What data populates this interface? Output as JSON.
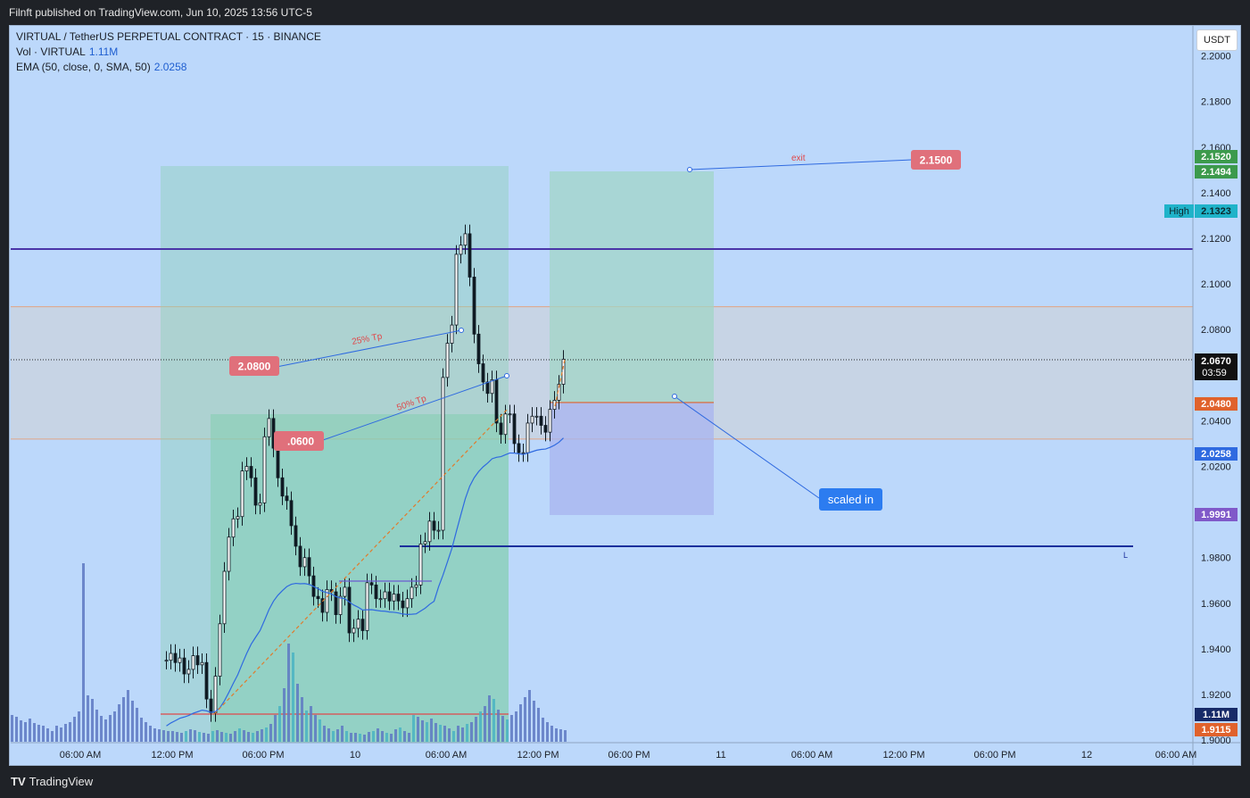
{
  "header": {
    "published": "Filnft published on TradingView.com, Jun 10, 2025 13:56 UTC-5"
  },
  "legend": {
    "symbol": "VIRTUAL / TetherUS PERPETUAL CONTRACT · 15 · BINANCE",
    "vol_label": "Vol · VIRTUAL",
    "vol_value": "1.11M",
    "ema_label": "EMA (50, close, 0, SMA, 50)",
    "ema_value": "2.0258"
  },
  "currency_button": "USDT",
  "footer": {
    "logo": "TV",
    "brand": "TradingView"
  },
  "colors": {
    "background": "#bcd8fb",
    "candle": "#0f1a23",
    "ema": "#2f6ae0",
    "volume_blue": "#5e79c2",
    "volume_teal": "#49b4c2",
    "purple_line": "#4a35a8",
    "navy_line": "#1b2f9c",
    "red_label": "#e0707b",
    "scaled_blue": "#2c7cf0"
  },
  "chart_data": {
    "type": "candlestick",
    "symbol": "VIRTUALUSDT.P",
    "interval": "15",
    "ylim": [
      1.9,
      2.21
    ],
    "y_ticks": [
      "2.2000",
      "2.1800",
      "2.1600",
      "2.1400",
      "2.1200",
      "2.1000",
      "2.0800",
      "2.0400",
      "2.0200",
      "1.9800",
      "1.9600",
      "1.9400",
      "1.9200",
      "1.9000"
    ],
    "x_ticks": [
      "06:00 AM",
      "12:00 PM",
      "06:00 PM",
      "10",
      "06:00 AM",
      "12:00 PM",
      "06:00 PM",
      "11",
      "06:00 AM",
      "12:00 PM",
      "06:00 PM",
      "12",
      "06:00 AM"
    ],
    "closes": [
      1.935,
      1.938,
      1.934,
      1.936,
      1.929,
      1.931,
      1.937,
      1.933,
      1.934,
      1.918,
      1.912,
      1.928,
      1.951,
      1.974,
      1.989,
      1.997,
      1.998,
      2.018,
      2.02,
      2.015,
      2.003,
      2.004,
      2.033,
      2.041,
      2.028,
      2.015,
      2.007,
      2.005,
      1.994,
      1.985,
      1.976,
      1.98,
      1.972,
      1.963,
      1.962,
      1.956,
      1.966,
      1.965,
      1.955,
      1.963,
      1.967,
      1.947,
      1.949,
      1.953,
      1.948,
      1.969,
      1.968,
      1.962,
      1.962,
      1.965,
      1.961,
      1.964,
      1.961,
      1.958,
      1.962,
      1.967,
      1.968,
      1.986,
      1.987,
      1.996,
      1.992,
      1.992,
      2.059,
      2.074,
      2.082,
      2.113,
      2.117,
      2.122,
      2.103,
      2.078,
      2.065,
      2.057,
      2.052,
      2.058,
      2.039,
      2.034,
      2.043,
      2.043,
      2.03,
      2.026,
      2.026,
      2.039,
      2.042,
      2.042,
      2.038,
      2.035,
      2.045,
      2.049,
      2.056,
      2.067
    ],
    "candle_range": {
      "first_index": 0,
      "last_index": 89
    },
    "volume_heights": [
      30,
      28,
      24,
      22,
      26,
      21,
      19,
      18,
      15,
      12,
      18,
      16,
      20,
      22,
      28,
      34,
      40,
      52,
      48,
      36,
      29,
      25,
      30,
      34,
      42,
      50,
      58,
      46,
      38,
      27,
      22,
      18,
      15,
      14,
      13,
      12,
      12,
      11,
      10,
      12,
      14,
      13,
      11,
      10,
      9,
      12,
      13,
      11,
      10,
      9,
      12,
      15,
      13,
      11,
      10,
      12,
      14,
      16,
      20,
      30,
      40,
      60,
      110,
      100,
      65,
      50,
      35,
      40,
      30,
      25,
      18,
      15,
      12,
      14,
      18,
      12,
      10,
      10,
      9,
      8,
      11,
      12,
      15,
      12,
      10,
      9,
      14,
      16,
      12,
      10
    ],
    "series": [
      {
        "name": "Vol · VIRTUAL",
        "last": "1.11M"
      },
      {
        "name": "EMA (50, close, 0, SMA, 50)",
        "last": "2.0258"
      }
    ],
    "horizontal_lines": [
      {
        "price": 2.116,
        "color": "#4a35a8"
      },
      {
        "price": 1.985,
        "color": "#1b2f9c"
      },
      {
        "price": 2.067,
        "color": "#222222",
        "style": "dotted"
      }
    ],
    "zones": [
      {
        "from": 2.032,
        "to": 2.09,
        "color": "gray"
      }
    ],
    "trade_boxes": [
      {
        "target": 2.152,
        "entry": 2.048,
        "stop": 1.999
      }
    ],
    "annotations": {
      "label_2080": "2.0800",
      "label_2060": ".0600",
      "label_2150": "2.1500",
      "tp25": "25% Tp",
      "tp50": "50% Tp",
      "exit": "exit",
      "scaled_in": "scaled in",
      "L": "L"
    },
    "price_labels": {
      "p2152": "2.1520",
      "p2149": "2.1494",
      "high_text": "High",
      "high_val": "2.1323",
      "current": "2.0670",
      "countdown": "03:59",
      "p2048": "2.0480",
      "ema": "2.0258",
      "p1999": "1.9991",
      "vol": "1.11M",
      "p1911": "1.9115"
    }
  }
}
